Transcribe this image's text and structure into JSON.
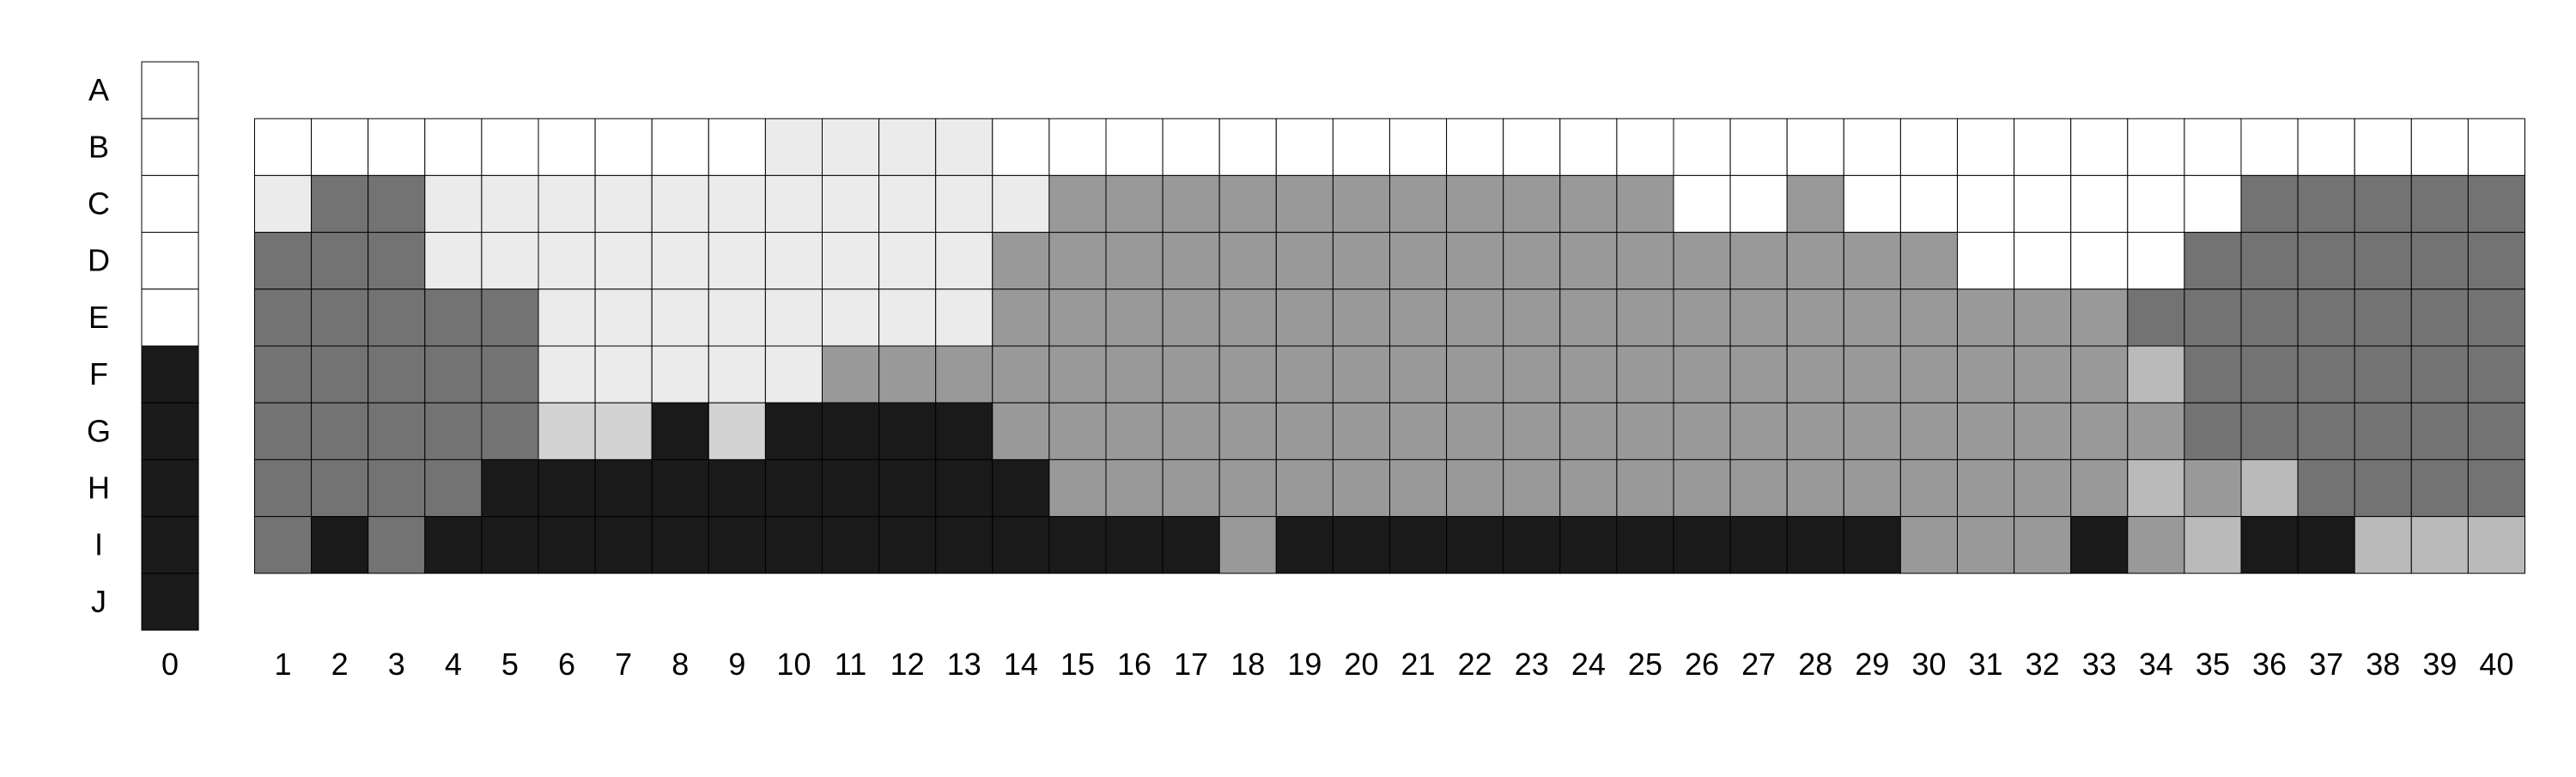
{
  "chart_data": {
    "type": "heatmap",
    "rows": [
      "A",
      "B",
      "C",
      "D",
      "E",
      "F",
      "G",
      "H",
      "I",
      "J"
    ],
    "columns": [
      "1",
      "2",
      "3",
      "4",
      "5",
      "6",
      "7",
      "8",
      "9",
      "10",
      "11",
      "12",
      "13",
      "14",
      "15",
      "16",
      "17",
      "18",
      "19",
      "20",
      "21",
      "22",
      "23",
      "24",
      "25",
      "26",
      "27",
      "28",
      "29",
      "30",
      "31",
      "32",
      "33",
      "34",
      "35",
      "36",
      "37",
      "38",
      "39",
      "40"
    ],
    "reference_column": {
      "label": "0",
      "values": [
        "W",
        "W",
        "W",
        "W",
        "W",
        "K",
        "K",
        "K",
        "K",
        "K"
      ]
    },
    "grid": [
      "WWWWWWWWWLLLLWWWWWWWWWWWWWWWWWWWWWWWWWWW",
      "LDDLLLLLLLLLLLMMMMMMMMMMMWWMWWWWWWWDDDDD",
      "DDDLLLLLLLLLLMMMMMMMMMMMMMMMMMWWWWDDDDDD",
      "DDDDDLLLLLLLLMMMMMMMMMMMMMMMMMMMMDDDDDDD",
      "DDDDDLLLLLMMMMMMMMMMMMMMMMMMMMMMMSDDDDDD",
      "DDDDDPPKPKKKKMMMMMMMMMMMMMMMMMMMMMDDDDDD",
      "DDDDKKKKKKKKKKMMMMMMMMMMMMMMMMMMMSMSDDDD",
      "DKDKKKKKKKKKKKKKKMKKKKKKKKKKKMMMKMSKKSSS"
    ],
    "grid_first_row": "B",
    "shade_colors": {
      "W": "#ffffff",
      "L": "#ebebeb",
      "P": "#d3d3d3",
      "S": "#bababa",
      "M": "#999999",
      "D": "#737373",
      "K": "#1a1a1a"
    },
    "xlabel": "",
    "ylabel": "",
    "title": ""
  }
}
